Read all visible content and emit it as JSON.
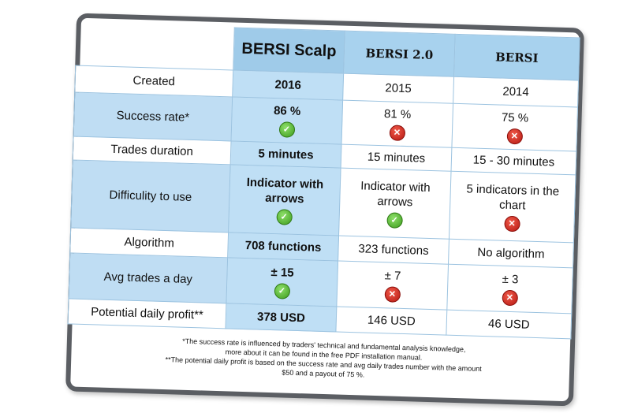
{
  "columns": [
    "BERSI Scalp",
    "BERSI 2.0",
    "BERSI"
  ],
  "rows": [
    {
      "label": "Created",
      "values": [
        "2016",
        "2015",
        "2014"
      ],
      "icons": [
        null,
        null,
        null
      ]
    },
    {
      "label": "Success rate*",
      "values": [
        "86 %",
        "81 %",
        "75 %"
      ],
      "icons": [
        "check-icon",
        "cross-icon",
        "cross-icon"
      ]
    },
    {
      "label": "Trades duration",
      "values": [
        "5 minutes",
        "15 minutes",
        "15 - 30 minutes"
      ],
      "icons": [
        null,
        null,
        null
      ]
    },
    {
      "label": "Difficulity to use",
      "values": [
        "Indicator with arrows",
        "Indicator with arrows",
        "5 indicators in the chart"
      ],
      "icons": [
        "check-icon",
        "check-icon",
        "cross-icon"
      ]
    },
    {
      "label": "Algorithm",
      "values": [
        "708 functions",
        "323 functions",
        "No algorithm"
      ],
      "icons": [
        null,
        null,
        null
      ]
    },
    {
      "label": "Avg trades a day",
      "values": [
        "± 15",
        "± 7",
        "± 3"
      ],
      "icons": [
        "check-icon",
        "cross-icon",
        "cross-icon"
      ]
    },
    {
      "label": "Potential daily profit**",
      "values": [
        "378 USD",
        "146 USD",
        "46 USD"
      ],
      "icons": [
        null,
        null,
        null
      ]
    }
  ],
  "footnotes": {
    "line1": "*The success rate is influenced by traders' technical and fundamental analysis knowledge,",
    "line2": "more about it can be found in the free PDF installation manual.",
    "line3": "**The potential daily profit is based on the success rate and avg daily trades number with the amount",
    "line4": "$50 and a payout of 75 %."
  },
  "colors": {
    "frame": "#5b5e63",
    "header": "#9fcbe9",
    "highlight": "#bfdff5",
    "check": "#3d9b1d",
    "cross": "#b51812"
  }
}
